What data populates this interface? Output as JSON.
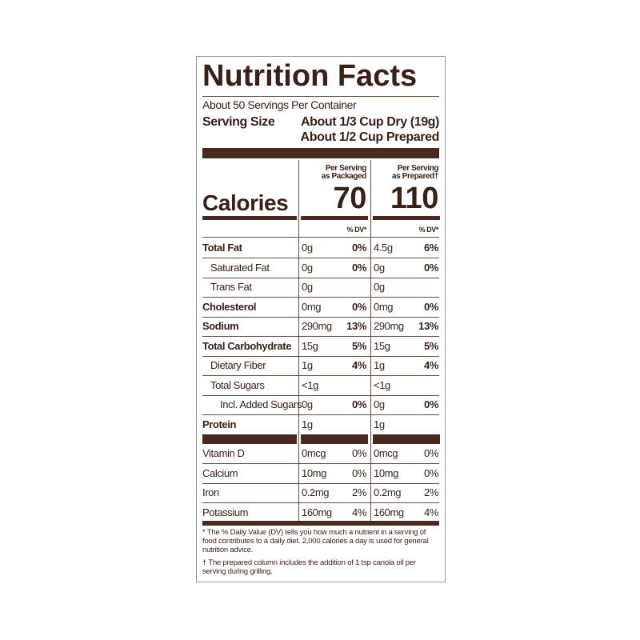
{
  "label": {
    "title": "Nutrition Facts",
    "servings": "About 50 Servings Per Container",
    "serving_size": {
      "label": "Serving Size",
      "values": [
        "About 1/3 Cup Dry (19g)",
        "About 1/2 Cup Prepared"
      ]
    },
    "columns": [
      {
        "heading": [
          "Per Serving",
          "as Packaged"
        ],
        "calories": "70"
      },
      {
        "heading": [
          "Per Serving",
          "as Prepared†"
        ],
        "calories": "110"
      }
    ],
    "calories_label": "Calories",
    "dv_header": "% DV*",
    "nutrients": [
      [
        "Total Fat",
        "0g",
        "0%",
        "4.5g",
        "6%"
      ],
      [
        "Saturated Fat",
        "0g",
        "0%",
        "0g",
        "0%"
      ],
      [
        "Trans Fat",
        "0g",
        null,
        "0g",
        null
      ],
      [
        "Cholesterol",
        "0mg",
        "0%",
        "0mg",
        "0%"
      ],
      [
        "Sodium",
        "290mg",
        "13%",
        "290mg",
        "13%"
      ],
      [
        "Total Carbohydrate",
        "15g",
        "5%",
        "15g",
        "5%"
      ],
      [
        "Dietary Fiber",
        "1g",
        "4%",
        "1g",
        "4%"
      ],
      [
        "Total Sugars",
        "<1g",
        null,
        "<1g",
        null
      ],
      [
        "Incl. Added Sugars",
        "0g",
        "0%",
        "0g",
        "0%"
      ],
      [
        "Protein",
        "1g",
        null,
        "1g",
        null
      ]
    ],
    "vitamins": [
      [
        "Vitamin D",
        "0mcg",
        "0%",
        "0mcg",
        "0%"
      ],
      [
        "Calcium",
        "10mg",
        "0%",
        "10mg",
        "0%"
      ],
      [
        "Iron",
        "0.2mg",
        "2%",
        "0.2mg",
        "2%"
      ],
      [
        "Potassium",
        "160mg",
        "4%",
        "160mg",
        "4%"
      ]
    ],
    "footnotes": [
      "* The % Daily Value (DV) tells you how much a nutrient in a serving of food contributes to a daily diet. 2,000 calories a day is used for general nutrition advice.",
      "† The prepared column includes the addition of 1 tsp canola oil per serving during grilling."
    ]
  }
}
